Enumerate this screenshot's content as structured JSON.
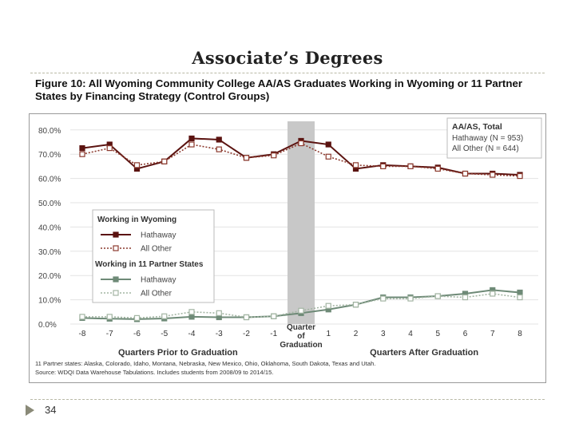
{
  "slide": {
    "title": "Associate’s Degrees",
    "figure_caption": "Figure 10: All Wyoming Community College AA/AS Graduates Working in Wyoming or 11 Partner States by Financing Strategy (Control Groups)",
    "page_number": "34"
  },
  "colors": {
    "hathaway_wy": "#5b1310",
    "other_wy": "#8c3a2e",
    "hathaway_ps": "#6e8a77",
    "other_ps": "#a3b5a3",
    "highlight": "#c8c8c8"
  },
  "chart_data": {
    "type": "line",
    "x": [
      -8,
      -7,
      -6,
      -5,
      -4,
      -3,
      -2,
      -1,
      0,
      1,
      2,
      3,
      4,
      5,
      6,
      7,
      8
    ],
    "x_tick_labels": [
      "-8",
      "-7",
      "-6",
      "-5",
      "-4",
      "-3",
      "-2",
      "-1",
      "",
      "1",
      "2",
      "3",
      "4",
      "5",
      "6",
      "7",
      "8"
    ],
    "y_ticks": [
      "0.0%",
      "10.0%",
      "20.0%",
      "30.0%",
      "40.0%",
      "50.0%",
      "60.0%",
      "70.0%",
      "80.0%"
    ],
    "ylim": [
      0,
      80
    ],
    "highlight_label_lines": [
      "Quarter",
      "of",
      "Graduation"
    ],
    "xlabel_left": "Quarters Prior to Graduation",
    "xlabel_right": "Quarters After Graduation",
    "series": [
      {
        "name": "Hathaway",
        "group": "Working in Wyoming",
        "style": "solid",
        "values": [
          72.5,
          74,
          64,
          67,
          76.5,
          76,
          68.5,
          70,
          75.5,
          74,
          64,
          65.5,
          65,
          64.5,
          62,
          62,
          61.5
        ]
      },
      {
        "name": "All Other",
        "group": "Working in Wyoming",
        "style": "dotted",
        "values": [
          70,
          72.5,
          65.5,
          67,
          74,
          72,
          68.5,
          69.5,
          74.5,
          69,
          65.5,
          65,
          65,
          64,
          62,
          61.5,
          61
        ]
      },
      {
        "name": "Hathaway",
        "group": "Working in 11 Partner States",
        "style": "solid",
        "values": [
          2.5,
          2.2,
          2,
          2.3,
          3,
          2.8,
          2.8,
          3.2,
          4.5,
          6,
          8,
          11,
          11,
          11.5,
          12.5,
          14,
          13
        ]
      },
      {
        "name": "All Other",
        "group": "Working in 11 Partner States",
        "style": "dotted",
        "values": [
          3,
          3,
          2.5,
          3.2,
          5,
          4.5,
          2.8,
          3.2,
          5.5,
          7.5,
          8,
          10.5,
          10.5,
          11.5,
          11,
          12.5,
          11
        ]
      }
    ],
    "legend_total": {
      "title": "AA/AS, Total",
      "entries": [
        "Hathaway (N = 953)",
        "All Other (N = 644)"
      ]
    },
    "legend_wy_title": "Working in Wyoming",
    "legend_ps_title": "Working in 11 Partner States",
    "legend_hathaway": "Hathaway",
    "legend_other": "All Other",
    "footnote_1": "11 Partner states: Alaska, Colorado, Idaho, Montana, Nebraska, New Mexico, Ohio, Oklahoma, South Dakota, Texas and Utah.",
    "footnote_2": "Source: WDQI Data Warehouse Tabulations. Includes students from 2008/09 to 2014/15."
  }
}
